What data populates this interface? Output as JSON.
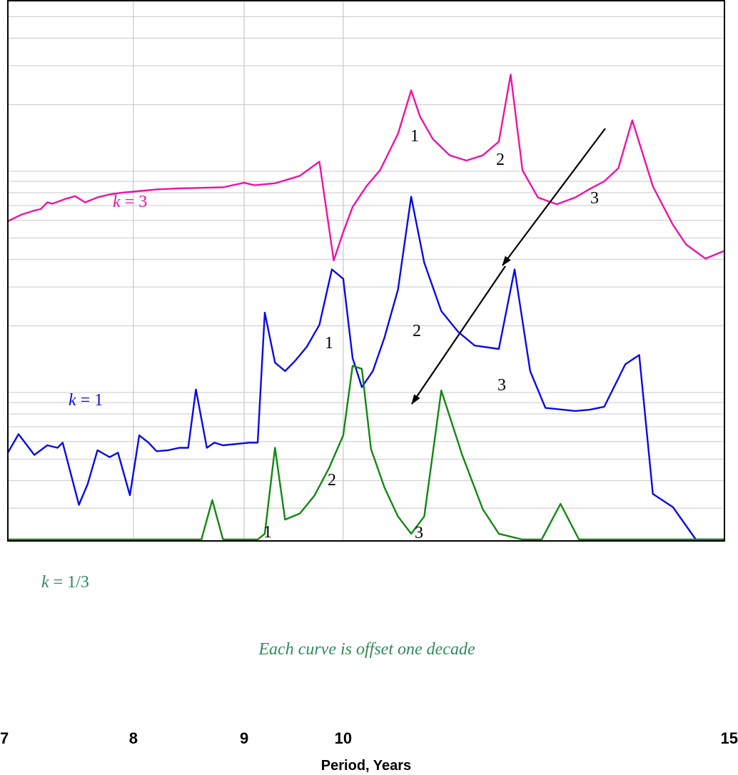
{
  "chart_data": {
    "type": "line",
    "title": "",
    "xlabel": "Period, Years",
    "ylabel": "",
    "x_scale": "log",
    "y_scale": "log",
    "grid": true,
    "xlim": [
      7,
      15
    ],
    "x_ticks": [
      {
        "value": 7,
        "label": "7"
      },
      {
        "value": 8,
        "label": "8"
      },
      {
        "value": 9,
        "label": "9"
      },
      {
        "value": 10,
        "label": "10"
      },
      {
        "value": 15,
        "label": "15"
      }
    ],
    "series": [
      {
        "name": "k = 3",
        "color": "#ee11aa",
        "x": [
          7.0,
          7.1,
          7.2,
          7.25,
          7.3,
          7.34,
          7.45,
          7.52,
          7.6,
          7.7,
          7.8,
          7.9,
          8.0,
          8.1,
          8.2,
          8.3,
          8.4,
          8.6,
          8.8,
          9.0,
          9.1,
          9.2,
          9.3,
          9.4,
          9.55,
          9.75,
          9.9,
          10.0,
          10.1,
          10.25,
          10.4,
          10.6,
          10.75,
          10.85,
          11.0,
          11.2,
          11.4,
          11.6,
          11.8,
          11.95,
          12.1,
          12.3,
          12.55,
          12.8,
          13.0,
          13.2,
          13.4,
          13.6,
          13.9,
          14.2,
          14.4,
          14.7,
          15.0
        ],
        "y": [
          -0.16,
          -0.06,
          0.0,
          0.02,
          0.12,
          0.1,
          0.18,
          0.22,
          0.12,
          0.2,
          0.25,
          0.28,
          0.3,
          0.32,
          0.34,
          0.35,
          0.36,
          0.37,
          0.38,
          0.47,
          0.42,
          0.44,
          0.46,
          0.52,
          0.62,
          0.97,
          -1.0,
          -0.35,
          0.05,
          0.4,
          0.75,
          1.9,
          4.3,
          2.7,
          1.7,
          1.15,
          1.0,
          1.15,
          1.6,
          5.6,
          0.75,
          0.2,
          0.09,
          0.2,
          0.35,
          0.5,
          0.8,
          2.5,
          0.4,
          -0.22,
          -0.6,
          -0.95,
          -0.75
        ]
      },
      {
        "name": "k = 1",
        "color": "#0a0ae6",
        "x": [
          7.0,
          7.08,
          7.2,
          7.3,
          7.38,
          7.42,
          7.55,
          7.62,
          7.7,
          7.8,
          7.87,
          7.97,
          8.05,
          8.13,
          8.2,
          8.3,
          8.4,
          8.48,
          8.55,
          8.65,
          8.72,
          8.8,
          8.9,
          9.05,
          9.13,
          9.2,
          9.3,
          9.4,
          9.5,
          9.62,
          9.75,
          9.88,
          10.0,
          10.1,
          10.2,
          10.32,
          10.45,
          10.6,
          10.75,
          10.9,
          11.1,
          11.3,
          11.5,
          11.8,
          12.0,
          12.2,
          12.4,
          12.8,
          13.0,
          13.2,
          13.5,
          13.7,
          13.9,
          14.2,
          14.55,
          14.8,
          15.0
        ],
        "y": [
          -0.55,
          -0.2,
          -0.6,
          -0.4,
          -0.45,
          -0.35,
          -2.2,
          -1.4,
          -0.5,
          -0.65,
          -0.55,
          -1.8,
          -0.22,
          -0.35,
          -0.52,
          -0.5,
          -0.45,
          -0.45,
          0.55,
          -0.45,
          -0.35,
          -0.4,
          -0.38,
          -0.35,
          -0.35,
          3.5,
          1.25,
          1.0,
          1.3,
          1.8,
          2.8,
          7.2,
          6.2,
          1.4,
          0.6,
          1.0,
          2.2,
          5.2,
          21.5,
          8.0,
          3.6,
          2.45,
          1.85,
          1.72,
          7.2,
          1.0,
          0.2,
          0.15,
          0.17,
          0.22,
          1.2,
          1.5,
          -1.75,
          -2.3,
          -4.8,
          -6.5,
          -7.0
        ]
      },
      {
        "name": "k = 1/3",
        "color": "#118811",
        "x": [
          7.0,
          7.05,
          7.15,
          7.3,
          7.4,
          7.48,
          7.56,
          7.65,
          7.78,
          7.9,
          8.0,
          8.05,
          8.12,
          8.2,
          8.3,
          8.4,
          8.5,
          8.6,
          8.7,
          8.8,
          8.95,
          9.05,
          9.13,
          9.2,
          9.3,
          9.4,
          9.55,
          9.7,
          9.85,
          10.0,
          10.1,
          10.2,
          10.3,
          10.45,
          10.6,
          10.75,
          10.9,
          11.1,
          11.35,
          11.6,
          11.8,
          12.1,
          12.35,
          12.6,
          12.85,
          13.1,
          13.3,
          13.6,
          13.8,
          14.1,
          14.3,
          14.6,
          14.9,
          15.0
        ],
        "y": [
          -1.1,
          -0.95,
          -0.95,
          -0.85,
          -0.75,
          -0.6,
          -1.2,
          -0.8,
          -0.65,
          -0.6,
          -0.65,
          -3.2,
          0.35,
          0.25,
          0.3,
          0.4,
          0.55,
          0.75,
          4.9,
          0.85,
          1.15,
          1.5,
          1.9,
          2.7,
          11.2,
          3.5,
          3.9,
          5.3,
          8.2,
          13.5,
          37.0,
          35.5,
          11.0,
          6.0,
          3.7,
          2.7,
          3.7,
          26.0,
          10.0,
          4.2,
          2.7,
          1.9,
          1.45,
          4.6,
          0.75,
          0.5,
          0.38,
          0.3,
          0.26,
          -1.7,
          -1.35,
          -1.55,
          -1.65,
          -1.6
        ]
      }
    ],
    "annotations": [
      {
        "text": "k = 3",
        "color": "#ee11aa"
      },
      {
        "text": "k = 1",
        "color": "#0a0ae6"
      },
      {
        "text": "k = 1/3",
        "color": "#2e8b57"
      },
      {
        "text": "Each curve is offset one decade",
        "color": "#2e8b57"
      }
    ],
    "peak_labels": [
      "1",
      "2",
      "3"
    ]
  },
  "labels": {
    "k3": "k = 3",
    "k1": "k = 1",
    "k13": "k = 1/3",
    "note": "Each curve is offset one decade",
    "one": "1",
    "two": "2",
    "three": "3"
  }
}
